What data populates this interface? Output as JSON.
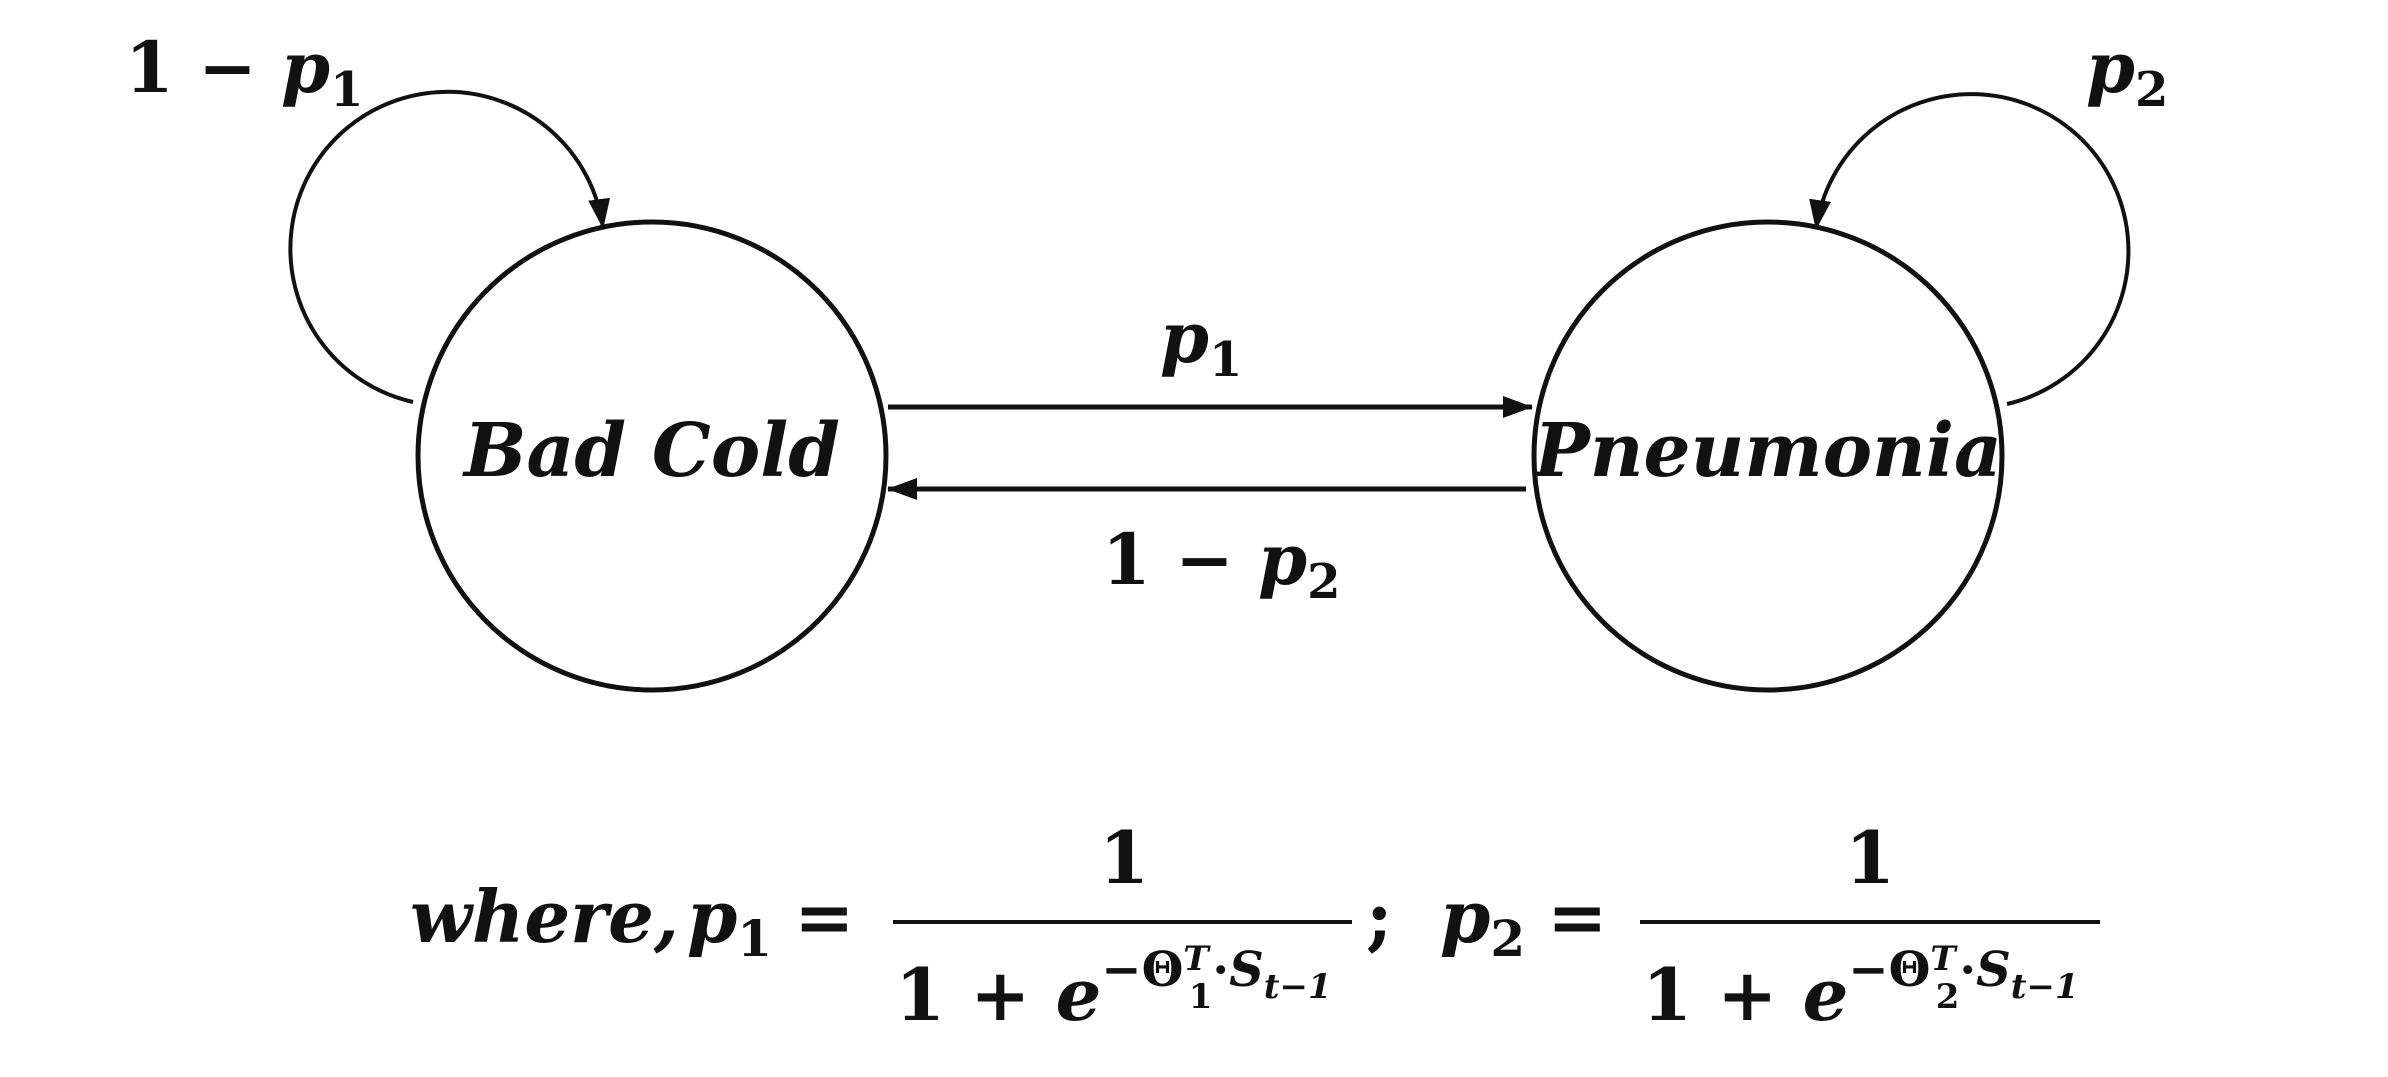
{
  "states": {
    "left": "Bad Cold",
    "right": "Pneumonia"
  },
  "edges": {
    "self_left": {
      "lead": "1 − ",
      "var": "p",
      "sub": "1"
    },
    "self_right": {
      "lead": "",
      "var": "p",
      "sub": "2"
    },
    "left_to_right": {
      "lead": "",
      "var": "p",
      "sub": "1"
    },
    "right_to_left": {
      "lead": "1 − ",
      "var": "p",
      "sub": "2"
    }
  },
  "formula": {
    "where": "where,",
    "p1": {
      "var": "p",
      "sub": "1"
    },
    "p2": {
      "var": "p",
      "sub": "2"
    },
    "equals": "=",
    "numerator": "1",
    "denominator_base": "1 + ",
    "e": "e",
    "minus": "−",
    "theta": "Θ",
    "theta1_sub": "1",
    "theta2_sub": "2",
    "transpose": "T",
    "dot": "·",
    "s": "S",
    "s_sub": "t−1",
    "separator": ";"
  },
  "colors": {
    "ink": "#111111",
    "background": "#ffffff"
  }
}
